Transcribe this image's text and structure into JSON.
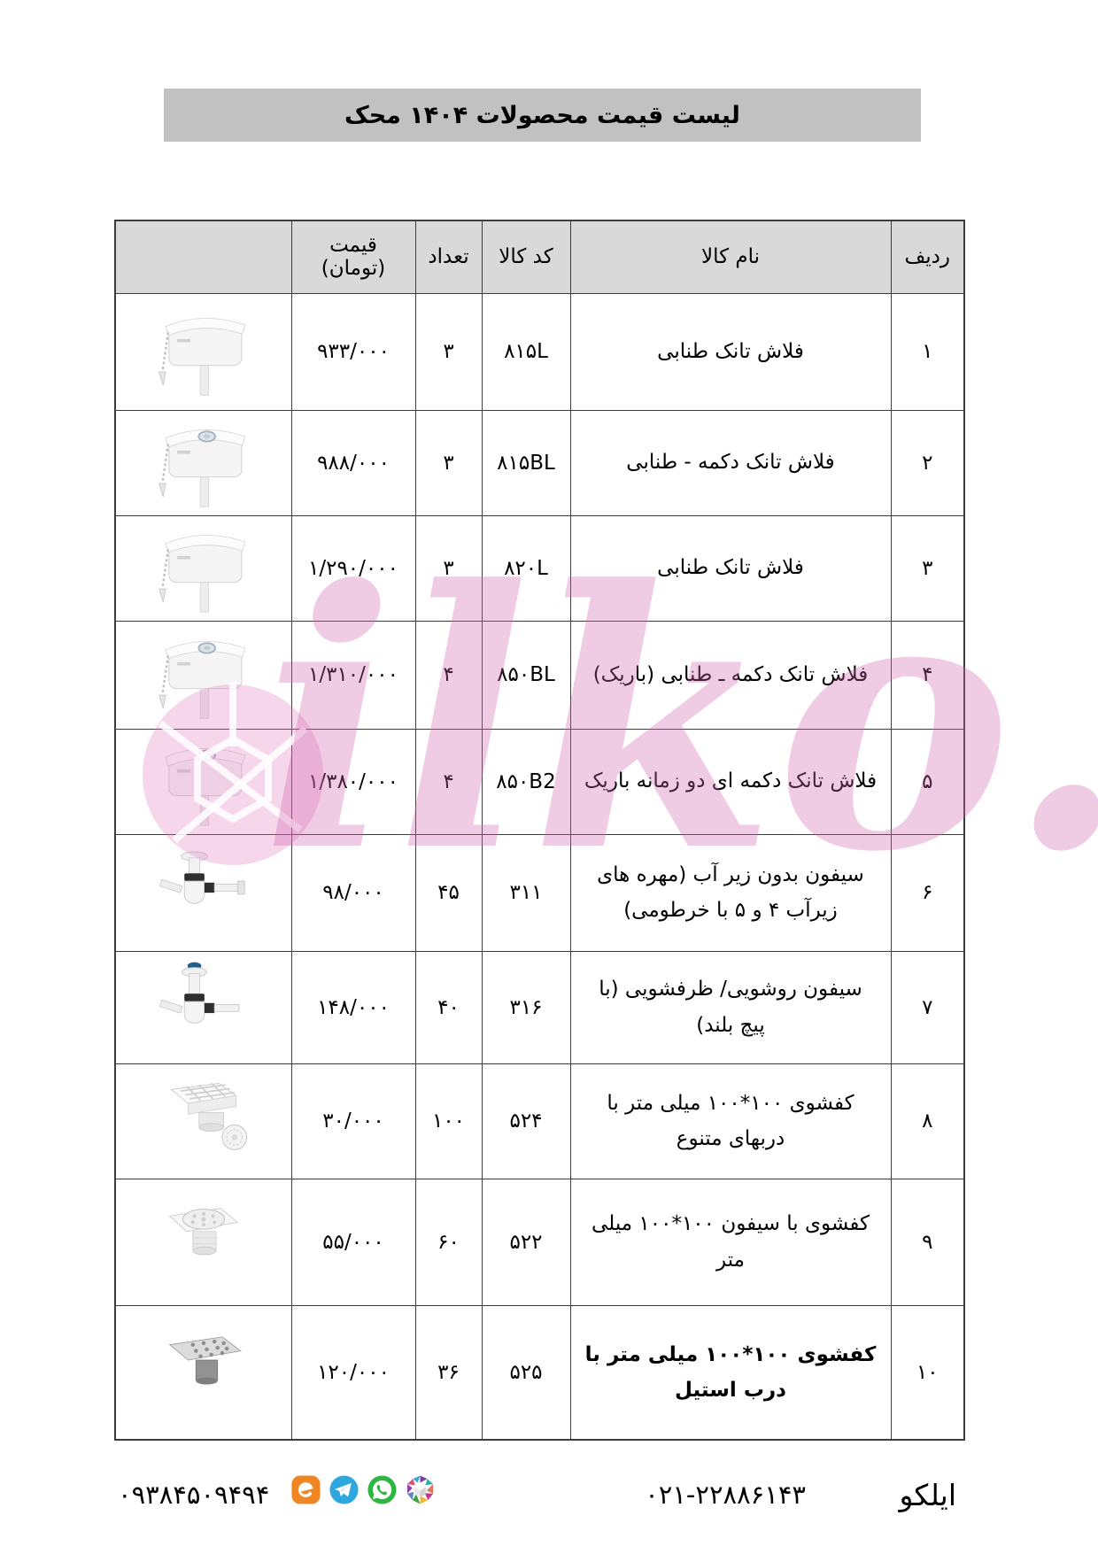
{
  "title": "لیست قیمت  محصولات  ۱۴۰۴  محک",
  "watermark": {
    "text": "ilko.ir",
    "color": "#d061ad"
  },
  "table": {
    "headers": {
      "row": "ردیف",
      "name": "نام کالا",
      "code": "کد کالا",
      "qty": "تعداد",
      "price_line1": "قیمت",
      "price_line2": "(تومان)"
    },
    "rows": [
      {
        "row": "۱",
        "name": "فلاش تانک طنابی",
        "code": "۸۱۵L",
        "qty": "۳",
        "price": "۹۳۳/۰۰۰",
        "image": "flush-tank-chain"
      },
      {
        "row": "۲",
        "name": "فلاش تانک دکمه - طنابی",
        "code": "۸۱۵BL",
        "qty": "۳",
        "price": "۹۸۸/۰۰۰",
        "image": "flush-tank-button-chain"
      },
      {
        "row": "۳",
        "name": "فلاش تانک طنابی",
        "code": "۸۲۰L",
        "qty": "۳",
        "price": "۱/۲۹۰/۰۰۰",
        "image": "flush-tank-chain"
      },
      {
        "row": "۴",
        "name": "فلاش تانک دکمه ـ طنابی (باریک)",
        "code": "۸۵۰BL",
        "qty": "۴",
        "price": "۱/۳۱۰/۰۰۰",
        "image": "flush-tank-button-chain"
      },
      {
        "row": "۵",
        "name": "فلاش تانک دکمه ای دو زمانه باریک",
        "code": "۸۵۰B2",
        "qty": "۴",
        "price": "۱/۳۸۰/۰۰۰",
        "image": "flush-tank-button"
      },
      {
        "row": "۶",
        "name": "سیفون بدون زیر آب (مهره های زیرآب ۴ و ۵ با خرطومی)",
        "code": "۳۱۱",
        "qty": "۴۵",
        "price": "۹۸/۰۰۰",
        "image": "siphon-bottle"
      },
      {
        "row": "۷",
        "name": "سیفون روشویی/ ظرفشویی (با پیچ بلند)",
        "code": "۳۱۶",
        "qty": "۴۰",
        "price": "۱۴۸/۰۰۰",
        "image": "siphon-long"
      },
      {
        "row": "۸",
        "name": "کفشوی ۱۰۰*۱۰۰ میلی متر با دربهای متنوع",
        "code": "۵۲۴",
        "qty": "۱۰۰",
        "price": "۳۰/۰۰۰",
        "image": "drain-grid"
      },
      {
        "row": "۹",
        "name": "کفشوی با سیفون ۱۰۰*۱۰۰  میلی متر",
        "code": "۵۲۲",
        "qty": "۶۰",
        "price": "۵۵/۰۰۰",
        "image": "drain-round"
      },
      {
        "row": "۱۰",
        "name": "کفشوی ۱۰۰*۱۰۰ میلی متر با درب استیل",
        "code": "۵۲۵",
        "qty": "۳۶",
        "price": "۱۲۰/۰۰۰",
        "image": "drain-steel"
      }
    ]
  },
  "footer": {
    "company": "ایلکو",
    "phone": "۰۲۱-۲۲۸۸۶۱۴۳",
    "mobile": "۰۹۳۸۴۵۰۹۴۹۴",
    "social_icons": [
      "eitaa",
      "telegram",
      "whatsapp",
      "igap"
    ]
  }
}
